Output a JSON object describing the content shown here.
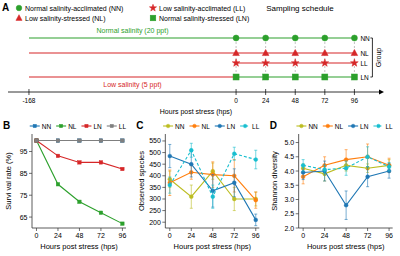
{
  "chart_data": [
    {
      "type": "schedule",
      "panel_label": "A",
      "title": "Sampling schedule",
      "xlabel": "Hours post stress (hps)",
      "xlim": [
        -185,
        120
      ],
      "xticks": [
        -168,
        0,
        24,
        48,
        72,
        96
      ],
      "group_label": "Group",
      "legend": "upper left",
      "legend_entries": [
        {
          "label": "Normal salinity-acclimated (NN)",
          "marker": "circle",
          "color": "#2ca02c"
        },
        {
          "label": "Low salinity-acclimated (LL)",
          "marker": "star",
          "color": "#d62728"
        },
        {
          "label": "Low salinity-stressed (NL)",
          "marker": "triangle",
          "color": "#d62728"
        },
        {
          "label": "Normal salinity-stressed (LN)",
          "marker": "square",
          "color": "#2ca02c"
        }
      ],
      "series": [
        {
          "name": "NN",
          "color": "#2ca02c",
          "marker": "circle",
          "x": [
            0,
            24,
            48,
            72,
            96
          ],
          "line_start": -168,
          "start_color": "#2ca02c",
          "annotation": "Normal salinity (20 ppt)",
          "annotation_color": "#2ca02c"
        },
        {
          "name": "NL",
          "color": "#d62728",
          "marker": "triangle",
          "x": [
            0,
            24,
            48,
            72,
            96
          ],
          "line_start": -168,
          "start_color": "#d62728"
        },
        {
          "name": "LL",
          "color": "#d62728",
          "marker": "star",
          "x": [
            0,
            24,
            48,
            72,
            96
          ]
        },
        {
          "name": "LN",
          "color": "#2ca02c",
          "marker": "square",
          "x": [
            0,
            24,
            48,
            72,
            96
          ],
          "line_start": -168,
          "start_color": "#d62728",
          "annotation": "Low salinity (5 ppt)",
          "annotation_color": "#d62728"
        }
      ]
    },
    {
      "type": "line",
      "panel_label": "B",
      "xlabel": "Hours post stress (hps)",
      "ylabel": "Survi val rate (%)",
      "x": [
        0,
        24,
        48,
        72,
        96
      ],
      "xlim": [
        -5,
        100
      ],
      "xticks": [
        0,
        24,
        48,
        72,
        96
      ],
      "ylim": [
        60,
        103
      ],
      "yticks": [
        65,
        75,
        85,
        95
      ],
      "grid": false,
      "legend": "top",
      "marker": "square",
      "series": [
        {
          "name": "NN",
          "color": "#1f77b4",
          "line_style": "solid",
          "values": [
            100,
            100,
            100,
            100,
            100
          ]
        },
        {
          "name": "NL",
          "color": "#2ca02c",
          "line_style": "solid",
          "values": [
            100,
            80,
            72,
            67,
            62
          ]
        },
        {
          "name": "LN",
          "color": "#d62728",
          "line_style": "solid",
          "values": [
            100,
            93,
            90,
            90,
            87
          ]
        },
        {
          "name": "LL",
          "color": "#7f7f7f",
          "line_style": "solid",
          "values": [
            100,
            100,
            100,
            100,
            100
          ]
        }
      ]
    },
    {
      "type": "line",
      "panel_label": "C",
      "xlabel": "Hours post stress (hps)",
      "ylabel": "Observed species",
      "x": [
        0,
        24,
        48,
        72,
        96
      ],
      "xlim": [
        -5,
        100
      ],
      "xticks": [
        0,
        24,
        48,
        72,
        96
      ],
      "ylim": [
        175,
        580
      ],
      "yticks": [
        200,
        250,
        300,
        350,
        400,
        450,
        500,
        550
      ],
      "grid": false,
      "legend": "top",
      "marker": "circle",
      "series": [
        {
          "name": "NN",
          "color": "#bcbd22",
          "line_style": "solid",
          "values": [
            385,
            310,
            420,
            300,
            300
          ],
          "errors": [
            35,
            50,
            35,
            50,
            30
          ]
        },
        {
          "name": "NL",
          "color": "#ff7f0e",
          "line_style": "solid",
          "values": [
            370,
            415,
            405,
            400,
            295
          ],
          "errors": [
            55,
            30,
            55,
            70,
            35
          ]
        },
        {
          "name": "LN",
          "color": "#1f77b4",
          "line_style": "solid",
          "values": [
            485,
            450,
            335,
            370,
            210
          ],
          "errors": [
            50,
            55,
            70,
            60,
            25
          ]
        },
        {
          "name": "LL",
          "color": "#17becf",
          "line_style": "dashed",
          "values": [
            360,
            510,
            310,
            495,
            470
          ],
          "errors": [
            35,
            30,
            50,
            28,
            40
          ]
        }
      ]
    },
    {
      "type": "line",
      "panel_label": "D",
      "xlabel": "Hours post stress (hps)",
      "ylabel": "Shannon diversity",
      "x": [
        0,
        24,
        48,
        72,
        96
      ],
      "xlim": [
        -5,
        100
      ],
      "xticks": [
        0,
        24,
        48,
        72,
        96
      ],
      "ylim": [
        2.0,
        5.3
      ],
      "yticks": [
        {
          "value": 2.0,
          "label": "2.0"
        },
        {
          "value": 2.5,
          "label": "2.5"
        },
        {
          "value": 3.0,
          "label": "3.0"
        },
        {
          "value": 3.5,
          "label": "3.5"
        },
        {
          "value": 4.0,
          "label": "4.0"
        },
        {
          "value": 4.5,
          "label": "4.5"
        },
        {
          "value": 5.0,
          "label": "5.0"
        }
      ],
      "grid": false,
      "legend": "top",
      "marker": "circle",
      "series": [
        {
          "name": "NN",
          "color": "#bcbd22",
          "line_style": "solid",
          "values": [
            4.1,
            3.9,
            4.2,
            4.1,
            4.2
          ],
          "errors": [
            0.15,
            0.25,
            0.2,
            0.15,
            0.2
          ]
        },
        {
          "name": "NL",
          "color": "#ff7f0e",
          "line_style": "solid",
          "values": [
            3.8,
            4.2,
            4.4,
            4.5,
            4.2
          ],
          "errors": [
            0.25,
            0.3,
            0.35,
            0.45,
            0.25
          ]
        },
        {
          "name": "LN",
          "color": "#1f77b4",
          "line_style": "solid",
          "values": [
            3.95,
            4.0,
            2.8,
            3.8,
            4.0
          ],
          "errors": [
            0.25,
            0.35,
            0.5,
            0.35,
            0.25
          ]
        },
        {
          "name": "LL",
          "color": "#17becf",
          "line_style": "dashed",
          "values": [
            4.2,
            4.05,
            4.1,
            4.5,
            4.15
          ],
          "errors": [
            0.2,
            0.15,
            0.25,
            0.35,
            0.15
          ]
        }
      ]
    }
  ]
}
